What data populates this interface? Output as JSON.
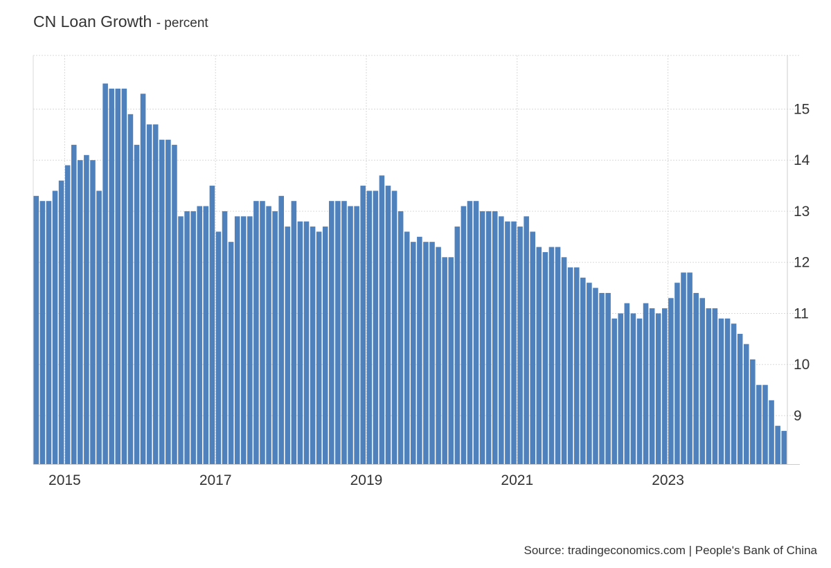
{
  "chart_data": {
    "type": "bar",
    "title": "CN Loan Growth",
    "subtitle": "- percent",
    "source": "Source: tradingeconomics.com | People's Bank of China",
    "xlabel": "",
    "ylabel": "",
    "bar_color": "#4f81bd",
    "grid": true,
    "y_axis_side": "right",
    "ylim": [
      8.05,
      16.05
    ],
    "yticks": [
      9,
      10,
      11,
      12,
      13,
      14,
      15
    ],
    "yticks_labels": [
      "9",
      "10",
      "11",
      "12",
      "13",
      "14",
      "15"
    ],
    "xticks": [
      "2015",
      "2017",
      "2019",
      "2021",
      "2023"
    ],
    "start": "2014-08",
    "end": "2024-07",
    "categories": [
      "2014-08",
      "2014-09",
      "2014-10",
      "2014-11",
      "2014-12",
      "2015-01",
      "2015-02",
      "2015-03",
      "2015-04",
      "2015-05",
      "2015-06",
      "2015-07",
      "2015-08",
      "2015-09",
      "2015-10",
      "2015-11",
      "2015-12",
      "2016-01",
      "2016-02",
      "2016-03",
      "2016-04",
      "2016-05",
      "2016-06",
      "2016-07",
      "2016-08",
      "2016-09",
      "2016-10",
      "2016-11",
      "2016-12",
      "2017-01",
      "2017-02",
      "2017-03",
      "2017-04",
      "2017-05",
      "2017-06",
      "2017-07",
      "2017-08",
      "2017-09",
      "2017-10",
      "2017-11",
      "2017-12",
      "2018-01",
      "2018-02",
      "2018-03",
      "2018-04",
      "2018-05",
      "2018-06",
      "2018-07",
      "2018-08",
      "2018-09",
      "2018-10",
      "2018-11",
      "2018-12",
      "2019-01",
      "2019-02",
      "2019-03",
      "2019-04",
      "2019-05",
      "2019-06",
      "2019-07",
      "2019-08",
      "2019-09",
      "2019-10",
      "2019-11",
      "2019-12",
      "2020-01",
      "2020-02",
      "2020-03",
      "2020-04",
      "2020-05",
      "2020-06",
      "2020-07",
      "2020-08",
      "2020-09",
      "2020-10",
      "2020-11",
      "2020-12",
      "2021-01",
      "2021-02",
      "2021-03",
      "2021-04",
      "2021-05",
      "2021-06",
      "2021-07",
      "2021-08",
      "2021-09",
      "2021-10",
      "2021-11",
      "2021-12",
      "2022-01",
      "2022-02",
      "2022-03",
      "2022-04",
      "2022-05",
      "2022-06",
      "2022-07",
      "2022-08",
      "2022-09",
      "2022-10",
      "2022-11",
      "2022-12",
      "2023-01",
      "2023-02",
      "2023-03",
      "2023-04",
      "2023-05",
      "2023-06",
      "2023-07",
      "2023-08",
      "2023-09",
      "2023-10",
      "2023-11",
      "2023-12",
      "2024-01",
      "2024-02",
      "2024-03",
      "2024-04",
      "2024-05",
      "2024-06",
      "2024-07"
    ],
    "values": [
      13.3,
      13.2,
      13.2,
      13.4,
      13.6,
      13.9,
      14.3,
      14.0,
      14.1,
      14.0,
      13.4,
      15.5,
      15.4,
      15.4,
      15.4,
      14.9,
      14.3,
      15.3,
      14.7,
      14.7,
      14.4,
      14.4,
      14.3,
      12.9,
      13.0,
      13.0,
      13.1,
      13.1,
      13.5,
      12.6,
      13.0,
      12.4,
      12.9,
      12.9,
      12.9,
      13.2,
      13.2,
      13.1,
      13.0,
      13.3,
      12.7,
      13.2,
      12.8,
      12.8,
      12.7,
      12.6,
      12.7,
      13.2,
      13.2,
      13.2,
      13.1,
      13.1,
      13.5,
      13.4,
      13.4,
      13.7,
      13.5,
      13.4,
      13.0,
      12.6,
      12.4,
      12.5,
      12.4,
      12.4,
      12.3,
      12.1,
      12.1,
      12.7,
      13.1,
      13.2,
      13.2,
      13.0,
      13.0,
      13.0,
      12.9,
      12.8,
      12.8,
      12.7,
      12.9,
      12.6,
      12.3,
      12.2,
      12.3,
      12.3,
      12.1,
      11.9,
      11.9,
      11.7,
      11.6,
      11.5,
      11.4,
      11.4,
      10.9,
      11.0,
      11.2,
      11.0,
      10.9,
      11.2,
      11.1,
      11.0,
      11.1,
      11.3,
      11.6,
      11.8,
      11.8,
      11.4,
      11.3,
      11.1,
      11.1,
      10.9,
      10.9,
      10.8,
      10.6,
      10.4,
      10.1,
      9.6,
      9.6,
      9.3,
      8.8,
      8.7
    ]
  }
}
